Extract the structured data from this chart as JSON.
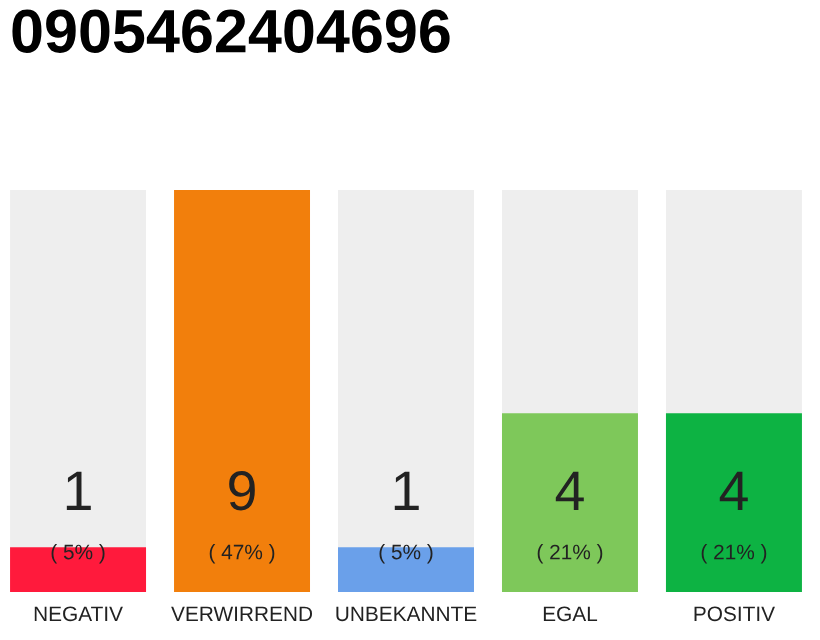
{
  "chart_data": {
    "type": "bar",
    "title": "0905462404696",
    "categories": [
      "NEGATIV",
      "VERWIRREND",
      "UNBEKANNTE",
      "EGAL",
      "POSITIV"
    ],
    "values": [
      1,
      9,
      1,
      4,
      4
    ],
    "colors": [
      "#ff1a3c",
      "#f27f0c",
      "#6aa0ea",
      "#7ec85a",
      "#0db343"
    ],
    "data_labels": true,
    "annotations": [
      "( 5% )",
      "( 47% )",
      "( 5% )",
      "( 21% )",
      "( 21% )"
    ],
    "grid": false,
    "legend": false
  }
}
